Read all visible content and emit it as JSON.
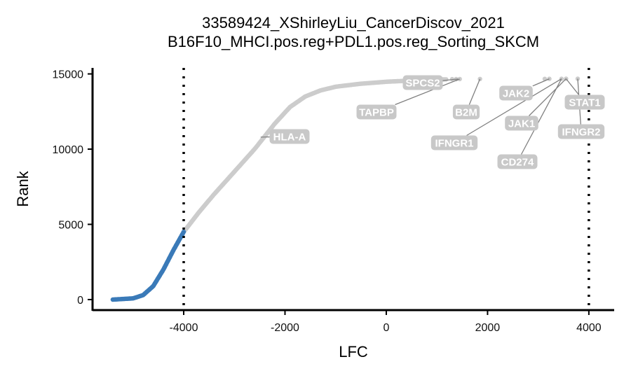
{
  "chart_data": {
    "type": "scatter",
    "title": "33589424_XShirleyLiu_CancerDiscov_2021",
    "subtitle": "B16F10_MHCI.pos.reg+PDL1.pos.reg_Sorting_SKCM",
    "xlabel": "LFC",
    "ylabel": "Rank",
    "xlim": [
      -5800,
      4500
    ],
    "ylim": [
      -700,
      15400
    ],
    "x_ticks": [
      -4000,
      -2000,
      0,
      2000,
      4000
    ],
    "x_tick_labels": [
      "-4000",
      "-2000",
      "0",
      "2000",
      "4000"
    ],
    "y_ticks": [
      0,
      5000,
      10000,
      15000
    ],
    "y_tick_labels": [
      "0",
      "5000",
      "10000",
      "15000"
    ],
    "thresholds": [
      -4000,
      4000
    ],
    "grid": false,
    "legend": "none",
    "colors": {
      "highlight": "#3a7ab8",
      "background": "#cccccc",
      "threshold": "#000000",
      "label_bg": "#c8c8c8",
      "label_text": "#ffffff",
      "connector": "#808080"
    },
    "curve_knots": [
      [
        -5400,
        0
      ],
      [
        -5000,
        80
      ],
      [
        -4800,
        300
      ],
      [
        -4600,
        900
      ],
      [
        -4400,
        2000
      ],
      [
        -4200,
        3300
      ],
      [
        -4000,
        4500
      ],
      [
        -3700,
        5800
      ],
      [
        -3400,
        7000
      ],
      [
        -3000,
        8500
      ],
      [
        -2600,
        10000
      ],
      [
        -2200,
        11700
      ],
      [
        -1900,
        12800
      ],
      [
        -1600,
        13500
      ],
      [
        -1300,
        13900
      ],
      [
        -1000,
        14150
      ],
      [
        -500,
        14350
      ],
      [
        0,
        14480
      ],
      [
        500,
        14560
      ],
      [
        900,
        14610
      ],
      [
        1200,
        14640
      ]
    ],
    "highlight_below_x": -4000,
    "extra_points": [
      {
        "x": 1300,
        "y": 14650
      },
      {
        "x": 1380,
        "y": 14655
      },
      {
        "x": 1450,
        "y": 14660
      },
      {
        "x": 1850,
        "y": 14665
      },
      {
        "x": 3130,
        "y": 14670
      },
      {
        "x": 3220,
        "y": 14672
      },
      {
        "x": 3460,
        "y": 14675
      },
      {
        "x": 3550,
        "y": 14678
      },
      {
        "x": 3780,
        "y": 14680
      }
    ],
    "labels": [
      {
        "text": "SPCS2",
        "x": 1420,
        "y": 14660
      },
      {
        "text": "TAPBP",
        "x": 1450,
        "y": 14660
      },
      {
        "text": "B2M",
        "x": 1850,
        "y": 14665
      },
      {
        "text": "JAK2",
        "x": 3220,
        "y": 14672
      },
      {
        "text": "IFNGR1",
        "x": 3460,
        "y": 14675
      },
      {
        "text": "JAK1",
        "x": 3550,
        "y": 14678
      },
      {
        "text": "CD274",
        "x": 3460,
        "y": 14675
      },
      {
        "text": "STAT1",
        "x": 3550,
        "y": 14678
      },
      {
        "text": "IFNGR2",
        "x": 3780,
        "y": 14680
      },
      {
        "text": "HLA-A",
        "x": -2480,
        "y": 10800
      }
    ]
  }
}
